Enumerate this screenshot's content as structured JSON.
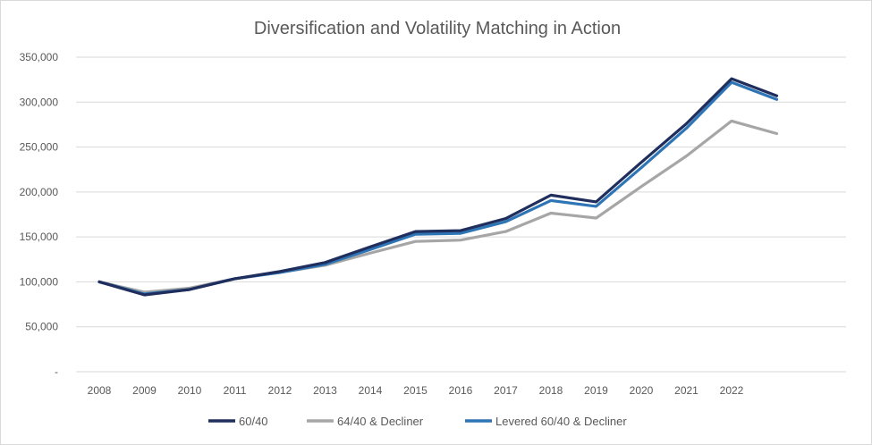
{
  "chart_data": {
    "type": "line",
    "title": "Diversification and Volatility Matching in Action",
    "x": [
      "2008",
      "2009",
      "2010",
      "2011",
      "2012",
      "2013",
      "2014",
      "2015",
      "2016",
      "2017",
      "2018",
      "2019",
      "2020",
      "2021",
      "2022",
      ""
    ],
    "ylim": [
      0,
      350000
    ],
    "yticks": [
      {
        "value": 0,
        "label": "-"
      },
      {
        "value": 50000,
        "label": "50,000"
      },
      {
        "value": 100000,
        "label": "100,000"
      },
      {
        "value": 150000,
        "label": "150,000"
      },
      {
        "value": 200000,
        "label": "200,000"
      },
      {
        "value": 250000,
        "label": "250,000"
      },
      {
        "value": 300000,
        "label": "300,000"
      },
      {
        "value": 350000,
        "label": "350,000"
      }
    ],
    "grid": true,
    "legend_position": "bottom",
    "series": [
      {
        "name": "64/40 & Decliner",
        "color": "#a6a6a6",
        "values": [
          100000,
          88500,
          93000,
          103500,
          110500,
          118500,
          132000,
          145000,
          146500,
          156000,
          176500,
          171000,
          206000,
          240000,
          279000,
          265000
        ]
      },
      {
        "name": "Levered 60/40 & Decliner",
        "color": "#2e75b6",
        "values": [
          100000,
          86500,
          91500,
          103500,
          110500,
          119500,
          136000,
          153000,
          154000,
          167000,
          190500,
          184000,
          227000,
          271000,
          322000,
          303000
        ]
      },
      {
        "name": "60/40",
        "color": "#1f2e5c",
        "values": [
          100000,
          85500,
          91500,
          103500,
          111500,
          121500,
          139000,
          156000,
          157000,
          170500,
          196500,
          189000,
          233000,
          276000,
          326000,
          307000
        ]
      }
    ],
    "legend": [
      {
        "name": "60/40",
        "color": "#1f2e5c"
      },
      {
        "name": "64/40 & Decliner",
        "color": "#a6a6a6"
      },
      {
        "name": "Levered 60/40 & Decliner",
        "color": "#2e75b6"
      }
    ]
  }
}
